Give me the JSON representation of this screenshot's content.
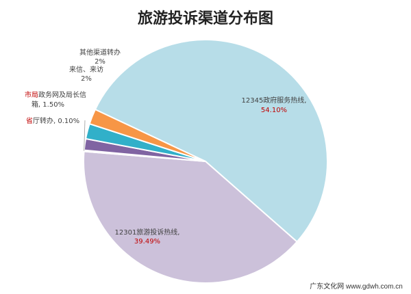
{
  "chart_data": {
    "type": "pie",
    "title": "旅游投诉渠道分布图",
    "slices": [
      {
        "label": "12345政府服务热线,",
        "value_text": "54.10%",
        "value": 54.1,
        "color": "#b7dde8",
        "value_color": "#c00000",
        "label_prefix": "",
        "label_prefix_color": ""
      },
      {
        "label": "12301旅游投诉热线,",
        "value_text": "39.49%",
        "value": 39.49,
        "color": "#ccc1da",
        "value_color": "#c00000",
        "label_prefix": "",
        "label_prefix_color": ""
      },
      {
        "label": "厅转办, 0.10%",
        "value_text": "",
        "value": 0.1,
        "color": "#e6e6e6",
        "value_color": "",
        "label_prefix": "省",
        "label_prefix_color": "#c00000"
      },
      {
        "label": "政务网及局长信",
        "label2": "箱, 1.50%",
        "value_text": "",
        "value": 1.5,
        "color": "#8064a2",
        "value_color": "",
        "label_prefix": "市局",
        "label_prefix_color": "#c00000"
      },
      {
        "label": "来信、来访",
        "value_text": "2%",
        "value": 2.0,
        "color": "#31b0c9",
        "value_color": "#404040",
        "label_prefix": "",
        "label_prefix_color": ""
      },
      {
        "label": "其他渠道转办",
        "value_text": "2%",
        "value": 2.0,
        "color": "#f79646",
        "value_color": "#404040",
        "label_prefix": "",
        "label_prefix_color": ""
      }
    ]
  },
  "watermark": "广东文化网 www.gdwh.com.cn"
}
